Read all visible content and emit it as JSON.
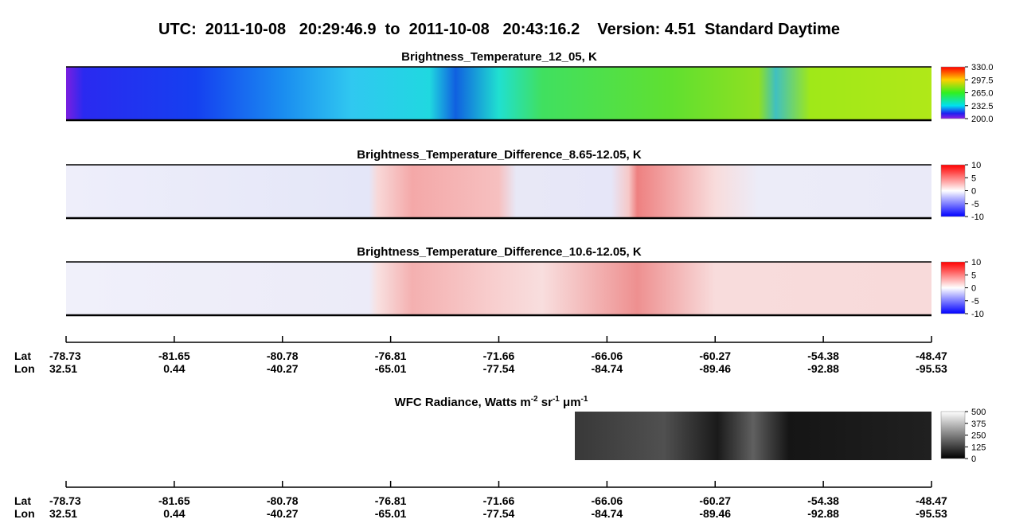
{
  "title": "UTC:  2011-10-08   20:29:46.9  to  2011-10-08   20:43:16.2    Version: 4.51  Standard Daytime",
  "panels": [
    {
      "title": "Brightness_Temperature_12_05, K",
      "colorbar_ticks": [
        "330.0",
        "297.5",
        "265.0",
        "232.5",
        "200.0"
      ]
    },
    {
      "title": "Brightness_Temperature_Difference_8.65-12.05, K",
      "colorbar_ticks": [
        "10",
        "5",
        "0",
        "-5",
        "-10"
      ]
    },
    {
      "title": "Brightness_Temperature_Difference_10.6-12.05, K",
      "colorbar_ticks": [
        "10",
        "5",
        "0",
        "-5",
        "-10"
      ]
    }
  ],
  "wfc": {
    "title_parts": [
      "WFC Radiance, Watts m",
      "-2",
      " sr",
      "-1",
      " μm",
      "-1"
    ],
    "colorbar_ticks": [
      "500",
      "375",
      "250",
      "125",
      "0"
    ]
  },
  "axes": [
    {
      "row_labels": [
        "Lat",
        "Lon"
      ],
      "lat": [
        "-78.73",
        "-81.65",
        "-80.78",
        "-76.81",
        "-71.66",
        "-66.06",
        "-60.27",
        "-54.38",
        "-48.47"
      ],
      "lon": [
        "32.51",
        "0.44",
        "-40.27",
        "-65.01",
        "-77.54",
        "-84.74",
        "-89.46",
        "-92.88",
        "-95.53"
      ]
    },
    {
      "row_labels": [
        "Lat",
        "Lon"
      ],
      "lat": [
        "-78.73",
        "-81.65",
        "-80.78",
        "-76.81",
        "-71.66",
        "-66.06",
        "-60.27",
        "-54.38",
        "-48.47"
      ],
      "lon": [
        "32.51",
        "0.44",
        "-40.27",
        "-65.01",
        "-77.54",
        "-84.74",
        "-89.46",
        "-92.88",
        "-95.53"
      ]
    }
  ]
}
